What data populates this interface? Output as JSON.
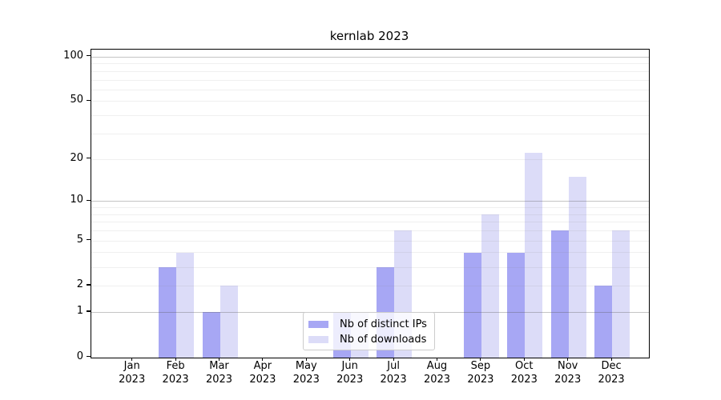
{
  "figure": {
    "background": "#ffffff"
  },
  "chart_data": {
    "type": "bar",
    "title": "kernlab 2023",
    "categories": [
      "Jan 2023",
      "Feb 2023",
      "Mar 2023",
      "Apr 2023",
      "May 2023",
      "Jun 2023",
      "Jul 2023",
      "Aug 2023",
      "Sep 2023",
      "Oct 2023",
      "Nov 2023",
      "Dec 2023"
    ],
    "category_line1": [
      "Jan",
      "Feb",
      "Mar",
      "Apr",
      "May",
      "Jun",
      "Jul",
      "Aug",
      "Sep",
      "Oct",
      "Nov",
      "Dec"
    ],
    "category_line2": "2023",
    "series": [
      {
        "name": "Nb of distinct IPs",
        "color": "#a7a7f4",
        "values": [
          0,
          3,
          1,
          0,
          0,
          1,
          3,
          0,
          4,
          4,
          6,
          2
        ]
      },
      {
        "name": "Nb of downloads",
        "color": "#dcdcf8",
        "values": [
          0,
          4,
          2,
          0,
          0,
          1,
          6,
          0,
          8,
          22,
          15,
          6
        ]
      }
    ],
    "xlabel": "",
    "ylabel": "",
    "yscale": "log1p",
    "ylim": [
      0,
      113
    ],
    "y_ticks": [
      0,
      1,
      2,
      5,
      10,
      20,
      50,
      100
    ],
    "grid": {
      "on": true,
      "major_lines": [
        1,
        10,
        100
      ],
      "minor_lines": [
        2,
        3,
        4,
        5,
        6,
        7,
        8,
        9,
        20,
        30,
        40,
        50,
        60,
        70,
        80,
        90
      ]
    },
    "legend": {
      "position": "inside-bottom-center",
      "entries": [
        "Nb of distinct IPs",
        "Nb of downloads"
      ]
    }
  }
}
